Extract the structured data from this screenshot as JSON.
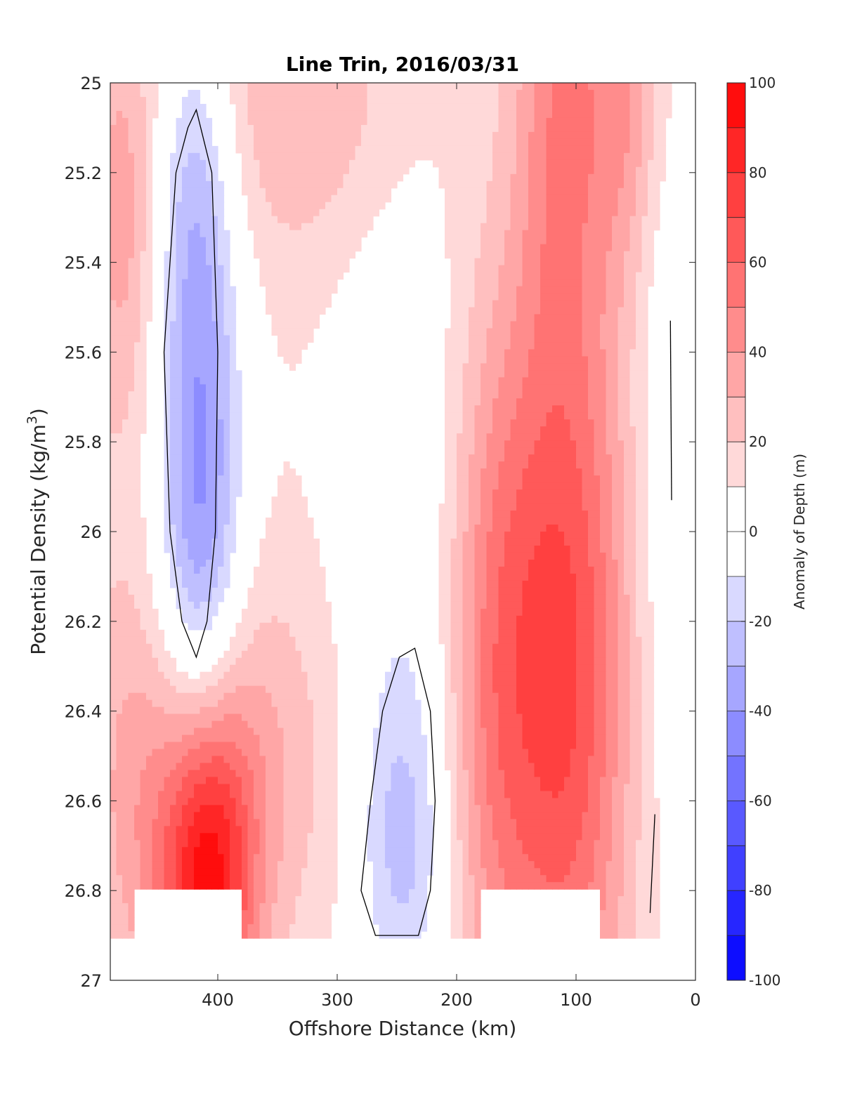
{
  "chart_data": {
    "type": "heatmap",
    "title": "Line Trin, 2016/03/31",
    "xlabel": "Offshore Distance (km)",
    "ylabel": "Potential Density (kg/m3)",
    "ylabel_parts": {
      "main": "Potential Density (kg/m",
      "superscript": "3",
      "end": ")"
    },
    "xlim": [
      490,
      0
    ],
    "ylim": [
      25,
      27
    ],
    "x_reversed": true,
    "y_reversed": true,
    "x_ticks": [
      400,
      300,
      200,
      100,
      0
    ],
    "x_tick_labels": [
      "400",
      "300",
      "200",
      "100",
      "0"
    ],
    "y_ticks": [
      25,
      25.2,
      25.4,
      25.6,
      25.8,
      26,
      26.2,
      26.4,
      26.6,
      26.8,
      27
    ],
    "y_tick_labels": [
      "25",
      "25.2",
      "25.4",
      "25.6",
      "25.8",
      "26",
      "26.2",
      "26.4",
      "26.6",
      "26.8",
      "27"
    ],
    "colorbar": {
      "label": "Anomaly of Depth (m)",
      "range": [
        -100,
        100
      ],
      "ticks": [
        100,
        80,
        60,
        40,
        20,
        0,
        -20,
        -40,
        -60,
        -80,
        -100
      ],
      "tick_labels": [
        "100",
        "80",
        "60",
        "40",
        "20",
        "0",
        "-20",
        "-40",
        "-60",
        "-80",
        "-100"
      ],
      "level_step": 10,
      "colormap": "blue-white-red"
    },
    "zero_contour": true,
    "features": [
      {
        "kind": "negative anomaly",
        "x_center": 415,
        "density_range": [
          25.05,
          26.3
        ],
        "min_value": -40
      },
      {
        "kind": "negative anomaly",
        "x_center": 245,
        "density_range": [
          26.25,
          26.9
        ],
        "min_value": -20
      },
      {
        "kind": "positive anomaly",
        "x_center": 410,
        "density_range": [
          26.35,
          26.8
        ],
        "max_value": 100
      },
      {
        "kind": "positive anomaly",
        "x_center": 110,
        "density_range": [
          25.0,
          26.9
        ],
        "max_value": 80
      }
    ]
  }
}
